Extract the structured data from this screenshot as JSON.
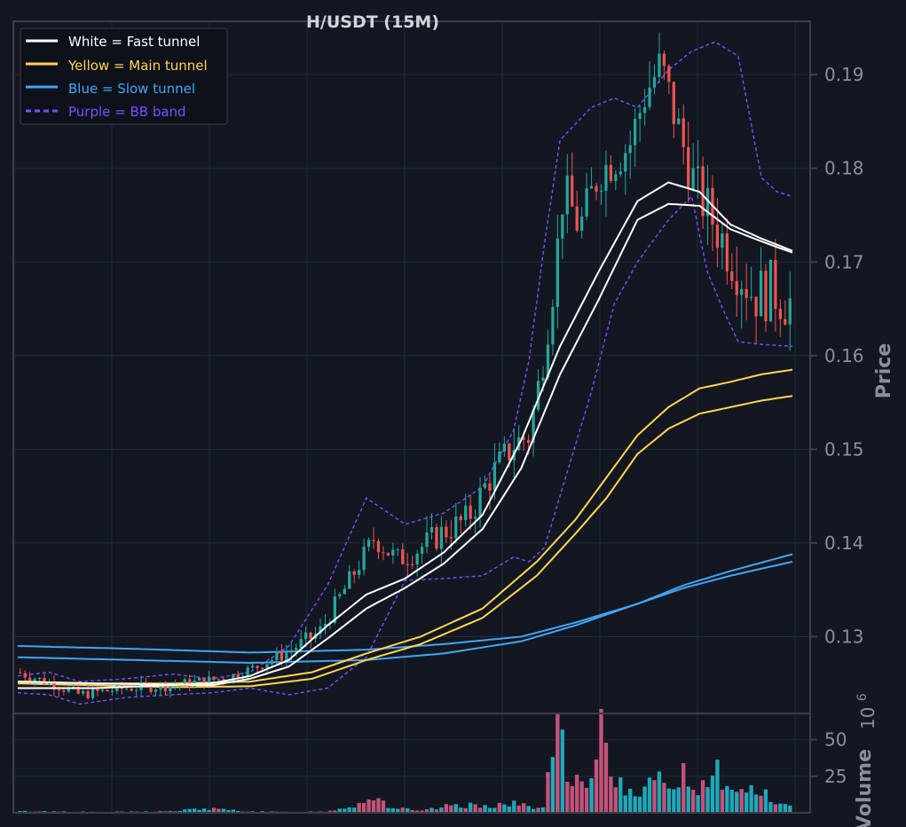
{
  "chart_data": {
    "type": "candlestick",
    "title": "H/USDT (15M)",
    "colors": {
      "background": "#131722",
      "grid": "#232a39",
      "frame": "#3a3f4b",
      "axis_text": "#8b8f99",
      "up": "#26a69a",
      "down": "#ef5350",
      "fast": "#ffffff",
      "main": "#ffd54f",
      "slow": "#42a5f5",
      "bb": "#7c4dff"
    },
    "legend": {
      "placement": "top-left",
      "items": [
        {
          "label": "White = Fast tunnel",
          "color": "#ffffff",
          "style": "solid"
        },
        {
          "label": "Yellow = Main tunnel",
          "color": "#ffd54f",
          "style": "solid"
        },
        {
          "label": "Blue = Slow tunnel",
          "color": "#42a5f5",
          "style": "solid"
        },
        {
          "label": "Purple = BB band",
          "color": "#7c4dff",
          "style": "dashed"
        }
      ]
    },
    "price_panel": {
      "ylabel": "Price",
      "ylim": [
        0.1218,
        0.1957
      ],
      "ticks": [
        0.13,
        0.14,
        0.15,
        0.16,
        0.17,
        0.18,
        0.19
      ],
      "tick_labels": [
        "0.13",
        "0.14",
        "0.15",
        "0.16",
        "0.17",
        "0.18",
        "0.19"
      ],
      "candles_approx": {
        "count": 160,
        "close_path": [
          [
            0,
            0.1262
          ],
          [
            0.05,
            0.1248
          ],
          [
            0.08,
            0.1238
          ],
          [
            0.14,
            0.1245
          ],
          [
            0.2,
            0.1248
          ],
          [
            0.27,
            0.1256
          ],
          [
            0.3,
            0.1265
          ],
          [
            0.345,
            0.1282
          ],
          [
            0.39,
            0.1305
          ],
          [
            0.425,
            0.1355
          ],
          [
            0.46,
            0.1405
          ],
          [
            0.49,
            0.1382
          ],
          [
            0.52,
            0.1395
          ],
          [
            0.55,
            0.1412
          ],
          [
            0.58,
            0.1425
          ],
          [
            0.61,
            0.147
          ],
          [
            0.64,
            0.1505
          ],
          [
            0.66,
            0.1515
          ],
          [
            0.675,
            0.158
          ],
          [
            0.69,
            0.1665
          ],
          [
            0.705,
            0.178
          ],
          [
            0.725,
            0.1735
          ],
          [
            0.75,
            0.1795
          ],
          [
            0.79,
            0.1825
          ],
          [
            0.81,
            0.188
          ],
          [
            0.83,
            0.191
          ],
          [
            0.855,
            0.1835
          ],
          [
            0.875,
            0.178
          ],
          [
            0.9,
            0.174
          ],
          [
            0.925,
            0.17
          ],
          [
            0.95,
            0.1665
          ],
          [
            0.975,
            0.167
          ],
          [
            1.0,
            0.1655
          ]
        ]
      },
      "fast_upper": [
        [
          0,
          0.1245
        ],
        [
          0.1,
          0.1245
        ],
        [
          0.25,
          0.125
        ],
        [
          0.3,
          0.1258
        ],
        [
          0.35,
          0.1275
        ],
        [
          0.4,
          0.1312
        ],
        [
          0.45,
          0.1345
        ],
        [
          0.5,
          0.1362
        ],
        [
          0.55,
          0.139
        ],
        [
          0.6,
          0.143
        ],
        [
          0.65,
          0.151
        ],
        [
          0.7,
          0.161
        ],
        [
          0.75,
          0.169
        ],
        [
          0.8,
          0.1765
        ],
        [
          0.84,
          0.1785
        ],
        [
          0.88,
          0.1775
        ],
        [
          0.92,
          0.174
        ],
        [
          0.96,
          0.1725
        ],
        [
          1.0,
          0.1712
        ]
      ],
      "fast_lower": [
        [
          0,
          0.1252
        ],
        [
          0.1,
          0.125
        ],
        [
          0.25,
          0.1248
        ],
        [
          0.3,
          0.1255
        ],
        [
          0.35,
          0.1268
        ],
        [
          0.4,
          0.1298
        ],
        [
          0.45,
          0.133
        ],
        [
          0.5,
          0.1352
        ],
        [
          0.55,
          0.1378
        ],
        [
          0.6,
          0.1415
        ],
        [
          0.65,
          0.148
        ],
        [
          0.7,
          0.158
        ],
        [
          0.75,
          0.166
        ],
        [
          0.8,
          0.1745
        ],
        [
          0.84,
          0.1762
        ],
        [
          0.88,
          0.176
        ],
        [
          0.92,
          0.1735
        ],
        [
          0.96,
          0.1722
        ],
        [
          1.0,
          0.171
        ]
      ],
      "main_upper": [
        [
          0,
          0.1252
        ],
        [
          0.1,
          0.125
        ],
        [
          0.2,
          0.125
        ],
        [
          0.3,
          0.1252
        ],
        [
          0.38,
          0.1262
        ],
        [
          0.45,
          0.1282
        ],
        [
          0.52,
          0.13
        ],
        [
          0.6,
          0.133
        ],
        [
          0.67,
          0.138
        ],
        [
          0.72,
          0.1425
        ],
        [
          0.76,
          0.147
        ],
        [
          0.8,
          0.1515
        ],
        [
          0.84,
          0.1545
        ],
        [
          0.88,
          0.1565
        ],
        [
          0.92,
          0.1572
        ],
        [
          0.96,
          0.158
        ],
        [
          1.0,
          0.1585
        ]
      ],
      "main_lower": [
        [
          0,
          0.125
        ],
        [
          0.1,
          0.1248
        ],
        [
          0.2,
          0.1246
        ],
        [
          0.3,
          0.1247
        ],
        [
          0.38,
          0.1255
        ],
        [
          0.45,
          0.1275
        ],
        [
          0.52,
          0.1292
        ],
        [
          0.6,
          0.132
        ],
        [
          0.67,
          0.1365
        ],
        [
          0.72,
          0.141
        ],
        [
          0.76,
          0.1448
        ],
        [
          0.8,
          0.1495
        ],
        [
          0.84,
          0.1522
        ],
        [
          0.88,
          0.1538
        ],
        [
          0.92,
          0.1545
        ],
        [
          0.96,
          0.1552
        ],
        [
          1.0,
          0.1557
        ]
      ],
      "slow_upper": [
        [
          0,
          0.129
        ],
        [
          0.15,
          0.1287
        ],
        [
          0.3,
          0.1283
        ],
        [
          0.45,
          0.1286
        ],
        [
          0.55,
          0.1292
        ],
        [
          0.65,
          0.13
        ],
        [
          0.72,
          0.1315
        ],
        [
          0.8,
          0.1335
        ],
        [
          0.86,
          0.1355
        ],
        [
          0.92,
          0.137
        ],
        [
          1.0,
          0.1388
        ]
      ],
      "slow_lower": [
        [
          0,
          0.1278
        ],
        [
          0.15,
          0.1275
        ],
        [
          0.3,
          0.1272
        ],
        [
          0.45,
          0.1275
        ],
        [
          0.55,
          0.1282
        ],
        [
          0.65,
          0.1295
        ],
        [
          0.72,
          0.1312
        ],
        [
          0.8,
          0.1335
        ],
        [
          0.86,
          0.1352
        ],
        [
          0.92,
          0.1365
        ],
        [
          1.0,
          0.138
        ]
      ],
      "bb_upper": [
        [
          0,
          0.1258
        ],
        [
          0.04,
          0.1262
        ],
        [
          0.08,
          0.1252
        ],
        [
          0.14,
          0.1255
        ],
        [
          0.2,
          0.126
        ],
        [
          0.25,
          0.1255
        ],
        [
          0.3,
          0.1262
        ],
        [
          0.35,
          0.129
        ],
        [
          0.4,
          0.1355
        ],
        [
          0.45,
          0.1448
        ],
        [
          0.5,
          0.142
        ],
        [
          0.55,
          0.1432
        ],
        [
          0.6,
          0.146
        ],
        [
          0.64,
          0.152
        ],
        [
          0.66,
          0.1595
        ],
        [
          0.68,
          0.172
        ],
        [
          0.7,
          0.183
        ],
        [
          0.74,
          0.1865
        ],
        [
          0.77,
          0.1875
        ],
        [
          0.8,
          0.1865
        ],
        [
          0.84,
          0.1905
        ],
        [
          0.87,
          0.1925
        ],
        [
          0.9,
          0.1935
        ],
        [
          0.93,
          0.192
        ],
        [
          0.96,
          0.179
        ],
        [
          0.98,
          0.1775
        ],
        [
          1.0,
          0.177
        ]
      ],
      "bb_lower": [
        [
          0,
          0.124
        ],
        [
          0.04,
          0.1238
        ],
        [
          0.08,
          0.1228
        ],
        [
          0.14,
          0.1235
        ],
        [
          0.2,
          0.1238
        ],
        [
          0.25,
          0.124
        ],
        [
          0.3,
          0.1245
        ],
        [
          0.35,
          0.1238
        ],
        [
          0.4,
          0.1245
        ],
        [
          0.45,
          0.1278
        ],
        [
          0.5,
          0.136
        ],
        [
          0.55,
          0.1362
        ],
        [
          0.6,
          0.1365
        ],
        [
          0.64,
          0.1385
        ],
        [
          0.66,
          0.138
        ],
        [
          0.68,
          0.1395
        ],
        [
          0.7,
          0.145
        ],
        [
          0.74,
          0.156
        ],
        [
          0.77,
          0.1655
        ],
        [
          0.8,
          0.17
        ],
        [
          0.84,
          0.1745
        ],
        [
          0.87,
          0.177
        ],
        [
          0.89,
          0.169
        ],
        [
          0.91,
          0.165
        ],
        [
          0.93,
          0.1615
        ],
        [
          0.96,
          0.1612
        ],
        [
          1.0,
          0.161
        ]
      ]
    },
    "volume_panel": {
      "ylabel": "Volume",
      "exponent_label": "10",
      "exponent_power": "6",
      "ylim": [
        0,
        68
      ],
      "ticks": [
        25,
        50
      ],
      "tick_labels": [
        "25",
        "50"
      ],
      "bars_approx": [
        [
          0,
          1
        ],
        [
          0.05,
          1
        ],
        [
          0.1,
          0.5
        ],
        [
          0.2,
          1
        ],
        [
          0.24,
          3
        ],
        [
          0.3,
          1
        ],
        [
          0.35,
          0.5
        ],
        [
          0.4,
          1
        ],
        [
          0.44,
          6
        ],
        [
          0.46,
          12
        ],
        [
          0.48,
          4
        ],
        [
          0.52,
          1
        ],
        [
          0.56,
          5
        ],
        [
          0.6,
          5
        ],
        [
          0.64,
          6
        ],
        [
          0.68,
          3
        ],
        [
          0.69,
          48
        ],
        [
          0.7,
          52
        ],
        [
          0.71,
          18
        ],
        [
          0.72,
          20
        ],
        [
          0.74,
          14
        ],
        [
          0.75,
          63
        ],
        [
          0.76,
          48
        ],
        [
          0.77,
          22
        ],
        [
          0.8,
          16
        ],
        [
          0.84,
          22
        ],
        [
          0.86,
          26
        ],
        [
          0.88,
          16
        ],
        [
          0.9,
          34
        ],
        [
          0.92,
          12
        ],
        [
          0.94,
          18
        ],
        [
          0.96,
          14
        ],
        [
          0.98,
          6
        ],
        [
          1.0,
          4
        ]
      ]
    }
  }
}
